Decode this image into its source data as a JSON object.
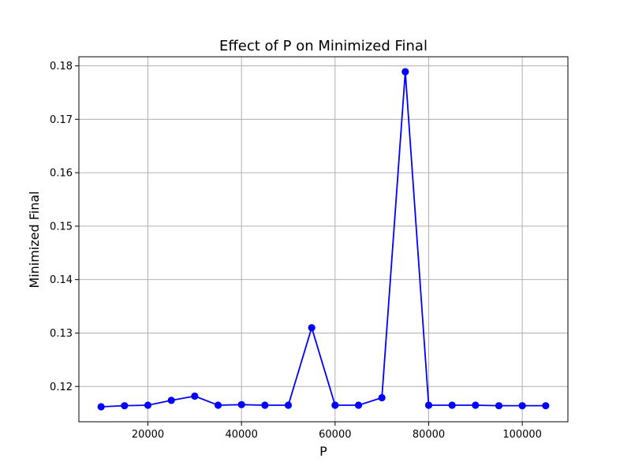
{
  "chart_data": {
    "type": "line",
    "title": "Effect of P on Minimized Final",
    "xlabel": "P",
    "ylabel": "Minimized Final",
    "xlim": [
      5250,
      109750
    ],
    "ylim": [
      0.1134,
      0.1817
    ],
    "xticks": [
      20000,
      40000,
      60000,
      80000,
      100000
    ],
    "yticks": [
      0.12,
      0.13,
      0.14,
      0.15,
      0.16,
      0.17,
      0.18
    ],
    "grid": true,
    "series": [
      {
        "color": "#0000ff",
        "marker": "circle",
        "x": [
          10000,
          15000,
          20000,
          25000,
          30000,
          35000,
          40000,
          45000,
          50000,
          55000,
          60000,
          65000,
          70000,
          75000,
          80000,
          85000,
          90000,
          95000,
          100000,
          105000
        ],
        "y": [
          0.1162,
          0.1164,
          0.1165,
          0.1174,
          0.1182,
          0.1165,
          0.1166,
          0.1165,
          0.1165,
          0.131,
          0.1165,
          0.1165,
          0.1179,
          0.1789,
          0.1165,
          0.1165,
          0.1165,
          0.1164,
          0.1164,
          0.1164
        ]
      }
    ]
  }
}
